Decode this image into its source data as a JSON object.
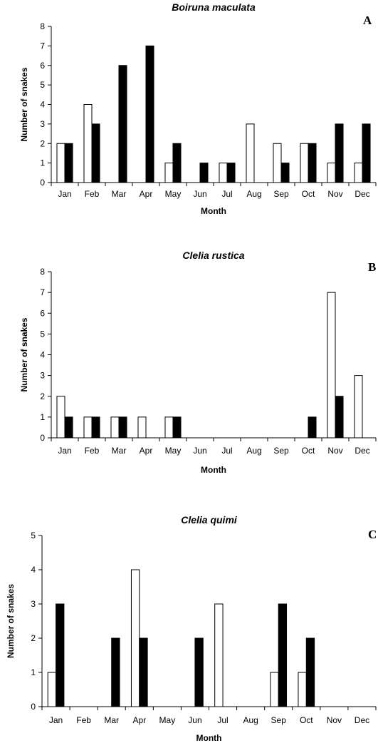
{
  "chart_data": [
    {
      "type": "bar",
      "letter": "A",
      "title": "Boiruna maculata",
      "xlabel": "Month",
      "ylabel": "Number of snakes",
      "ylim": [
        0,
        8
      ],
      "yticks": [
        0,
        1,
        2,
        3,
        4,
        5,
        6,
        7,
        8
      ],
      "categories": [
        "Jan",
        "Feb",
        "Mar",
        "Apr",
        "May",
        "Jun",
        "Jul",
        "Aug",
        "Sep",
        "Oct",
        "Nov",
        "Dec"
      ],
      "series": [
        {
          "fill": "#ffffff",
          "values": [
            2,
            4,
            0,
            0,
            1,
            0,
            1,
            3,
            2,
            2,
            1,
            1
          ]
        },
        {
          "fill": "#000000",
          "values": [
            2,
            3,
            6,
            7,
            2,
            1,
            1,
            0,
            1,
            2,
            3,
            3
          ]
        }
      ],
      "grid": false
    },
    {
      "type": "bar",
      "letter": "B",
      "title": "Clelia rustica",
      "xlabel": "Month",
      "ylabel": "Number of snakes",
      "ylim": [
        0,
        8
      ],
      "yticks": [
        0,
        1,
        2,
        3,
        4,
        5,
        6,
        7,
        8
      ],
      "categories": [
        "Jan",
        "Feb",
        "Mar",
        "Apr",
        "May",
        "Jun",
        "Jul",
        "Aug",
        "Sep",
        "Oct",
        "Nov",
        "Dec"
      ],
      "series": [
        {
          "fill": "#ffffff",
          "values": [
            2,
            1,
            1,
            1,
            1,
            0,
            0,
            0,
            0,
            0,
            7,
            3
          ]
        },
        {
          "fill": "#000000",
          "values": [
            1,
            1,
            1,
            0,
            1,
            0,
            0,
            0,
            0,
            1,
            2,
            0
          ]
        }
      ],
      "grid": false
    },
    {
      "type": "bar",
      "letter": "C",
      "title": "Clelia quimi",
      "xlabel": "Month",
      "ylabel": "Number of snakes",
      "ylim": [
        0,
        5
      ],
      "yticks": [
        0,
        1,
        2,
        3,
        4,
        5
      ],
      "categories": [
        "Jan",
        "Feb",
        "Mar",
        "Apr",
        "May",
        "Jun",
        "Jul",
        "Aug",
        "Sep",
        "Oct",
        "Nov",
        "Dec"
      ],
      "series": [
        {
          "fill": "#ffffff",
          "values": [
            1,
            0,
            0,
            4,
            0,
            0,
            3,
            0,
            1,
            1,
            0,
            0
          ]
        },
        {
          "fill": "#000000",
          "values": [
            3,
            0,
            2,
            2,
            0,
            2,
            0,
            0,
            3,
            2,
            0,
            0
          ]
        }
      ],
      "grid": false
    }
  ]
}
